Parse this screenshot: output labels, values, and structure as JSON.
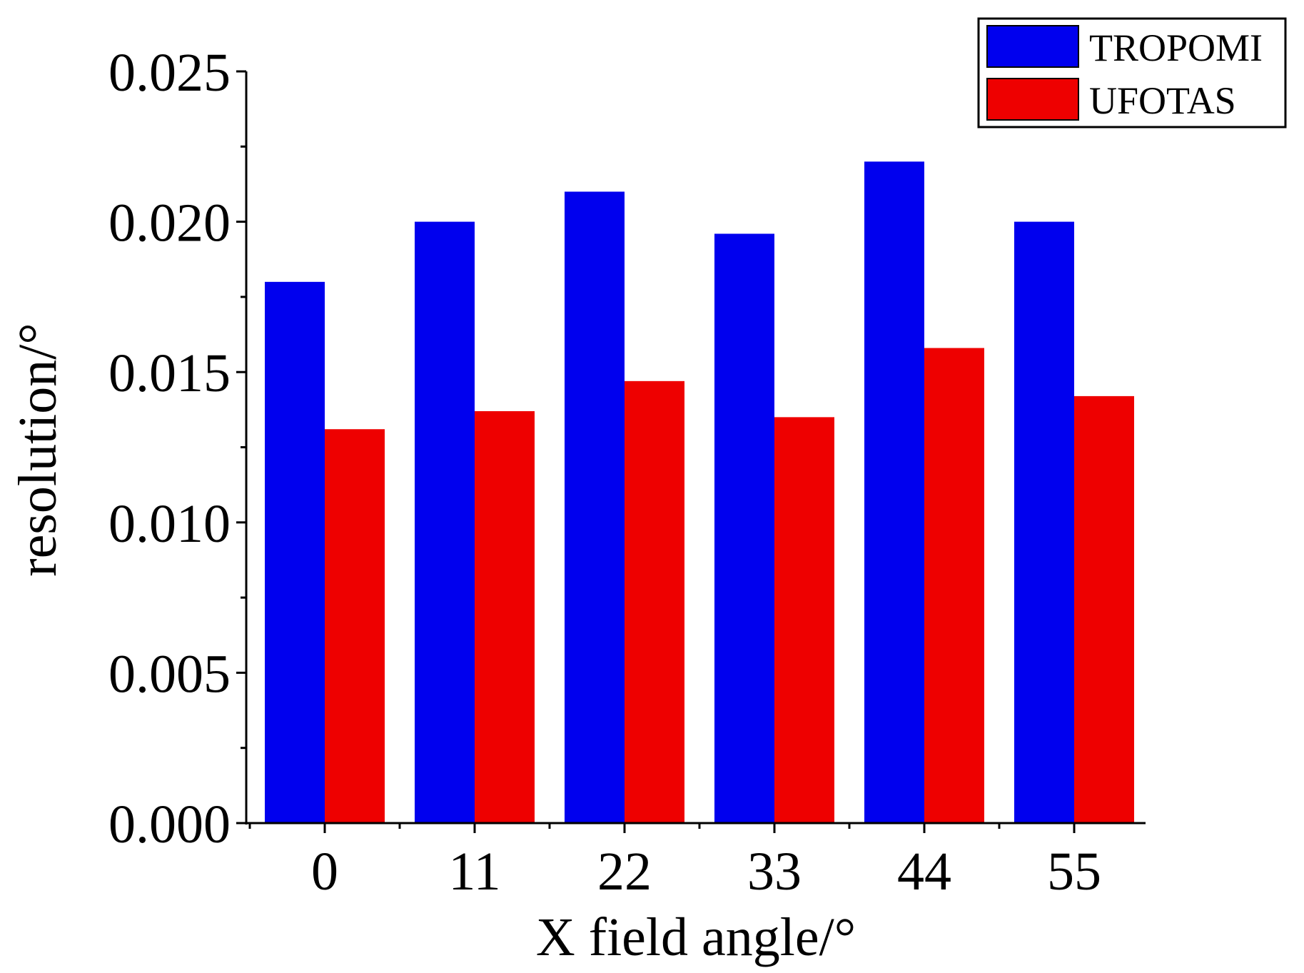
{
  "chart_data": {
    "type": "bar",
    "title": "",
    "xlabel": "X field angle/°",
    "ylabel": "resolution/°",
    "categories": [
      "0",
      "11",
      "22",
      "33",
      "44",
      "55"
    ],
    "series": [
      {
        "name": "TROPOMI",
        "color": "#0000ee",
        "values": [
          0.018,
          0.02,
          0.021,
          0.0196,
          0.022,
          0.02
        ]
      },
      {
        "name": "UFOTAS",
        "color": "#ee0000",
        "values": [
          0.0131,
          0.0137,
          0.0147,
          0.0135,
          0.0158,
          0.0142
        ]
      }
    ],
    "ylim": [
      0,
      0.025
    ],
    "yticks": [
      "0.000",
      "0.005",
      "0.010",
      "0.015",
      "0.020",
      "0.025"
    ],
    "grid": false,
    "legend_position": "top-right"
  }
}
